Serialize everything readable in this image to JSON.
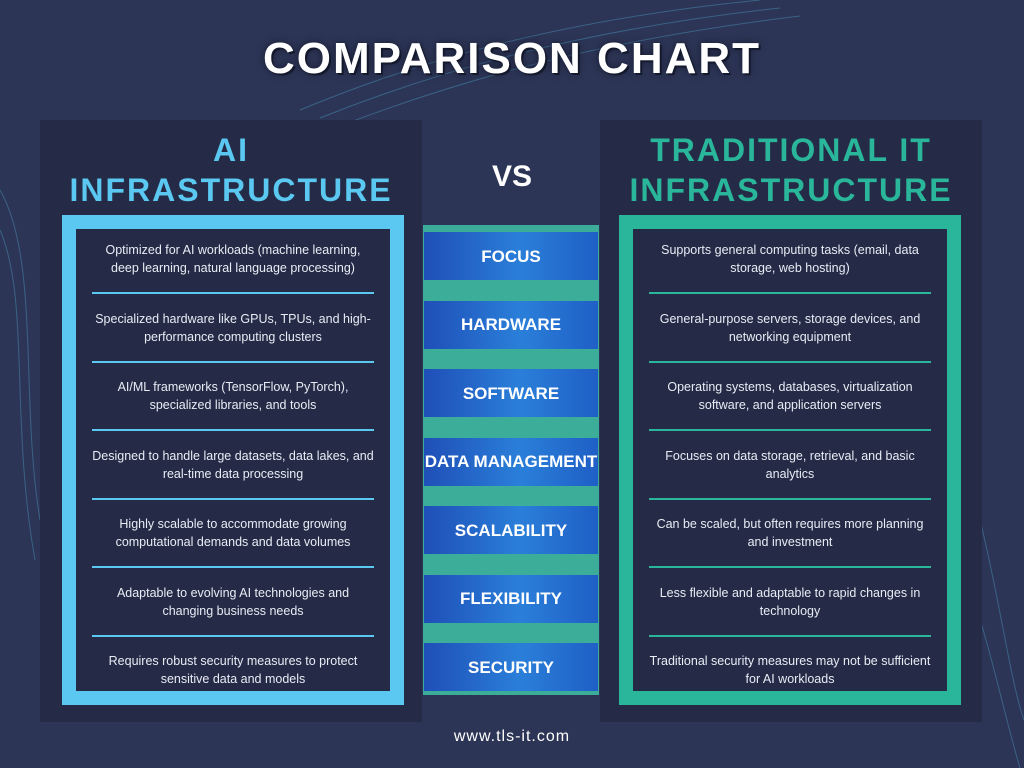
{
  "title": "COMPARISON CHART",
  "vs": "VS",
  "left": {
    "heading_lines": [
      "AI",
      "INFRASTRUCTURE"
    ],
    "items": [
      "Optimized for AI workloads (machine learning, deep learning, natural language processing)",
      "Specialized hardware like GPUs, TPUs, and high-performance computing clusters",
      "AI/ML frameworks (TensorFlow, PyTorch), specialized libraries, and tools",
      "Designed to handle large datasets, data lakes, and real-time data processing",
      "Highly scalable to accommodate growing computational demands and data volumes",
      "Adaptable to evolving AI technologies and changing business needs",
      "Requires robust security measures to protect sensitive data and models"
    ]
  },
  "categories": [
    "FOCUS",
    "HARDWARE",
    "SOFTWARE",
    "DATA MANAGEMENT",
    "SCALABILITY",
    "FLEXIBILITY",
    "SECURITY"
  ],
  "right": {
    "heading_lines": [
      "TRADITIONAL IT",
      "INFRASTRUCTURE"
    ],
    "items": [
      "Supports general computing tasks (email, data storage, web hosting)",
      "General-purpose servers, storage devices, and networking equipment",
      "Operating systems, databases, virtualization software, and application servers",
      "Focuses on data storage, retrieval, and basic analytics",
      "Can be scaled, but often requires more planning and investment",
      "Less flexible and adaptable to rapid changes in technology",
      "Traditional security measures may not be sufficient for AI workloads"
    ]
  },
  "footer": "www.tls-it.com"
}
